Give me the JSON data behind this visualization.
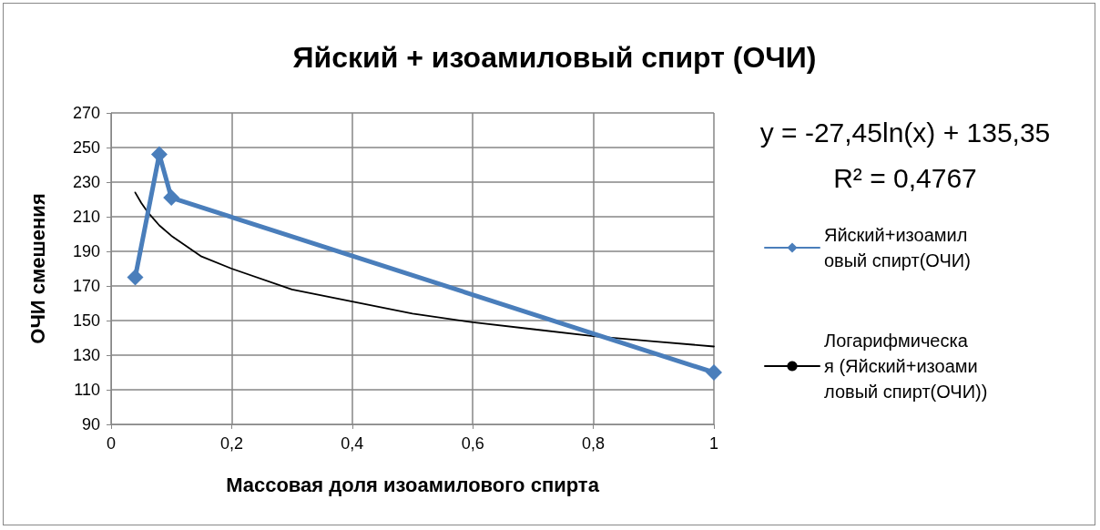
{
  "chart_data": {
    "type": "line",
    "title": "Яйский + изоамиловый спирт (ОЧИ)",
    "xlabel": "Массовая доля изоамилового спирта",
    "ylabel": "ОЧИ смешения",
    "xlim": [
      0,
      1
    ],
    "xticks": [
      0,
      {
        "value": 0.2,
        "label": "0,2"
      },
      {
        "value": 0.4,
        "label": "0,4"
      },
      {
        "value": 0.6,
        "label": "0,6"
      },
      {
        "value": 0.8,
        "label": "0,8"
      },
      1
    ],
    "ylim": [
      90,
      270
    ],
    "yticks": [
      90,
      110,
      130,
      150,
      170,
      190,
      210,
      230,
      250,
      270
    ],
    "grid": true,
    "legend": "right",
    "annotations": [
      "y = -27,45ln(x) + 135,35",
      "R² = 0,4767"
    ],
    "series": [
      {
        "name": "Яйский+изоамиловый спирт(ОЧИ)",
        "color": "#4a7ebb",
        "marker": "diamond",
        "x": [
          0.04,
          0.08,
          0.1,
          1
        ],
        "values": [
          175,
          246,
          221,
          120
        ]
      },
      {
        "name": "Логарифмическая (Яйский+изоамиловый спирт(ОЧИ))",
        "color": "#000000",
        "marker": "none",
        "line_style": "solid",
        "x": [
          0.04,
          0.05,
          0.06,
          0.08,
          0.1,
          0.15,
          0.2,
          0.3,
          0.4,
          0.5,
          0.6,
          0.7,
          0.8,
          0.9,
          1
        ],
        "values": [
          224,
          218,
          213,
          205,
          199,
          187,
          180,
          168,
          161,
          154,
          149,
          145,
          141,
          138,
          135
        ]
      }
    ]
  }
}
